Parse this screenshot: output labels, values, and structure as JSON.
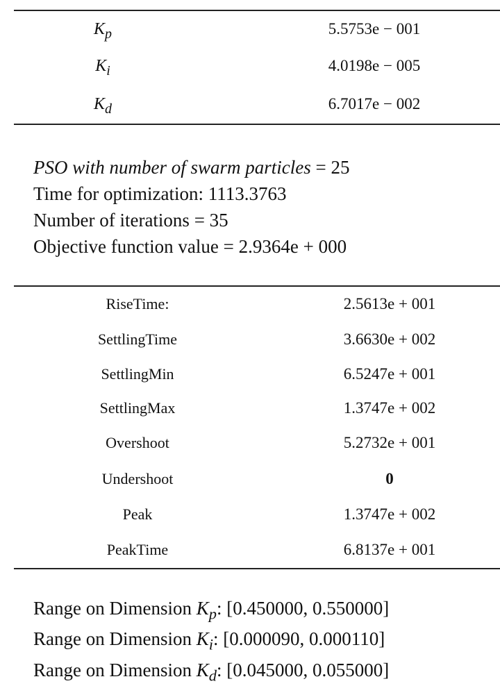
{
  "gains_table": [
    {
      "symbol": "K",
      "sub": "p",
      "value": "5.5753e − 001"
    },
    {
      "symbol": "K",
      "sub": "i",
      "value": "4.0198e − 005"
    },
    {
      "symbol": "K",
      "sub": "d",
      "value": "6.7017e − 002"
    }
  ],
  "pso_info": {
    "line1": "PSO with number of swarm particles",
    "line1_value": " = 25",
    "line2": "Time for optimization: 1113.3763",
    "line3": "Number of iterations = 35",
    "line4": "Objective function value = 2.9364e + 000"
  },
  "step_info": [
    {
      "label": "RiseTime:",
      "value": "2.5613e + 001"
    },
    {
      "label": "SettlingTime",
      "value": "3.6630e + 002"
    },
    {
      "label": "SettlingMin",
      "value": "6.5247e + 001"
    },
    {
      "label": "SettlingMax",
      "value": "1.3747e + 002"
    },
    {
      "label": "Overshoot",
      "value": "5.2732e + 001"
    },
    {
      "label": "Undershoot",
      "value": "0"
    },
    {
      "label": "Peak",
      "value": "1.3747e + 002"
    },
    {
      "label": "PeakTime",
      "value": "6.8137e + 001"
    }
  ],
  "ranges": [
    {
      "prefix": "Range on Dimension ",
      "symbol": "K",
      "sub": "p",
      "value": ": [0.450000, 0.550000]"
    },
    {
      "prefix": "Range on Dimension ",
      "symbol": "K",
      "sub": "i",
      "value": ": [0.000090, 0.000110]"
    },
    {
      "prefix": "Range on Dimension ",
      "symbol": "K",
      "sub": "d",
      "value": ": [0.045000, 0.055000]"
    }
  ]
}
